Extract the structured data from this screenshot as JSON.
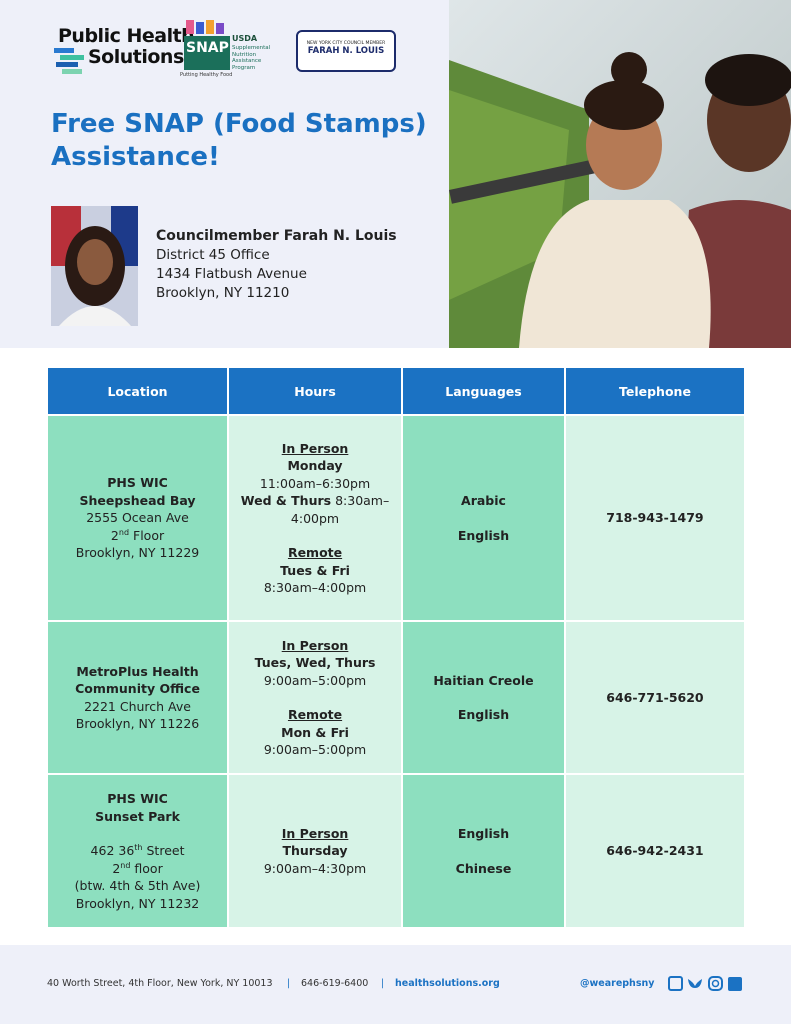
{
  "header": {
    "phs_logo": [
      "Public Health",
      "Solutions"
    ],
    "snap_logo": {
      "agency": "USDA",
      "name": "SNAP",
      "program": [
        "Supplemental",
        "Nutrition",
        "Assistance",
        "Program"
      ],
      "tagline": "Putting Healthy Food"
    },
    "council_logo": {
      "caption": "NEW YORK CITY COUNCIL MEMBER",
      "name": "FARAH N. LOUIS"
    },
    "title": "Free SNAP (Food Stamps) Assistance!",
    "office": {
      "name": "Councilmember Farah N. Louis",
      "lines": [
        "District 45 Office",
        "1434 Flatbush Avenue",
        "Brooklyn, NY 11210"
      ]
    }
  },
  "table": {
    "headers": [
      "Location",
      "Hours",
      "Languages",
      "Telephone"
    ],
    "rows": [
      {
        "location": {
          "name": [
            "PHS WIC",
            "Sheepshead Bay"
          ],
          "address": [
            "2555 Ocean Ave",
            [
              "2",
              "nd",
              " Floor"
            ],
            "Brooklyn, NY 11229"
          ]
        },
        "hours": [
          {
            "label": "In Person",
            "lines": [
              {
                "day": "Monday"
              },
              {
                "time": "11:00am–6:30pm"
              },
              {
                "day": "Wed & Thurs",
                "time": "8:30am–4:00pm"
              }
            ]
          },
          {
            "label": "Remote",
            "lines": [
              {
                "day": "Tues & Fri"
              },
              {
                "time": "8:30am–4:00pm"
              }
            ]
          }
        ],
        "languages": [
          "Arabic",
          "English"
        ],
        "telephone": "718-943-1479"
      },
      {
        "location": {
          "name": [
            "MetroPlus Health",
            "Community Office"
          ],
          "address": [
            "2221 Church Ave",
            "Brooklyn, NY 11226"
          ]
        },
        "hours": [
          {
            "label": "In Person",
            "lines": [
              {
                "day": "Tues, Wed, Thurs"
              },
              {
                "time": "9:00am–5:00pm"
              }
            ]
          },
          {
            "label": "Remote",
            "lines": [
              {
                "day": "Mon & Fri"
              },
              {
                "time": "9:00am–5:00pm"
              }
            ]
          }
        ],
        "languages": [
          "Haitian Creole",
          "English"
        ],
        "telephone": "646-771-5620"
      },
      {
        "location": {
          "name": [
            "PHS WIC",
            "Sunset Park"
          ],
          "address": [
            [
              "462 36",
              "th",
              " Street"
            ],
            [
              "2",
              "nd",
              " floor"
            ],
            "(btw. 4th & 5th Ave)",
            "Brooklyn, NY 11232"
          ]
        },
        "hours": [
          {
            "label": "In Person",
            "lines": [
              {
                "day": "Thursday"
              },
              {
                "time": "9:00am–4:30pm"
              }
            ]
          }
        ],
        "languages": [
          "English",
          "Chinese"
        ],
        "telephone": "646-942-2431"
      }
    ]
  },
  "footer": {
    "address": "40 Worth Street, 4th Floor, New York, NY 10013",
    "phone": "646-619-6400",
    "website": "healthsolutions.org",
    "handle": "@wearephsny"
  }
}
